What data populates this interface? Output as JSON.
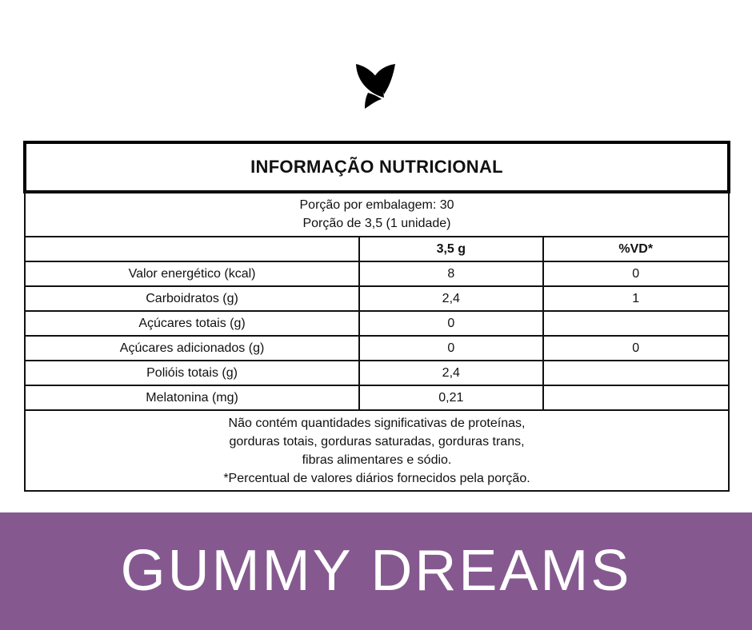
{
  "title": "INFORMAÇÃO NUTRICIONAL",
  "serving": {
    "line1": "Porção por embalagem: 30",
    "line2": "Porção de 3,5 (1 unidade)"
  },
  "columns": [
    "",
    "3,5 g",
    "%VD*"
  ],
  "rows": [
    {
      "name": "Valor energético (kcal)",
      "amount": "8",
      "dv": "0"
    },
    {
      "name": "Carboidratos (g)",
      "amount": "2,4",
      "dv": "1"
    },
    {
      "name": "Açúcares totais (g)",
      "amount": "0",
      "dv": ""
    },
    {
      "name": "Açúcares adicionados (g)",
      "amount": "0",
      "dv": "0"
    },
    {
      "name": "Polióis totais (g)",
      "amount": "2,4",
      "dv": ""
    },
    {
      "name": "Melatonina (mg)",
      "amount": "0,21",
      "dv": ""
    }
  ],
  "footer": [
    "Não contém quantidades significativas de proteínas,",
    "gorduras totais, gorduras saturadas, gorduras trans,",
    "fibras alimentares e sódio.",
    "*Percentual de valores diários fornecidos pela porção."
  ],
  "brand": "GUMMY DREAMS",
  "colors": {
    "band": "#85598f",
    "text": "#111111"
  },
  "logo_icon": "leaf-bird-logo-icon"
}
